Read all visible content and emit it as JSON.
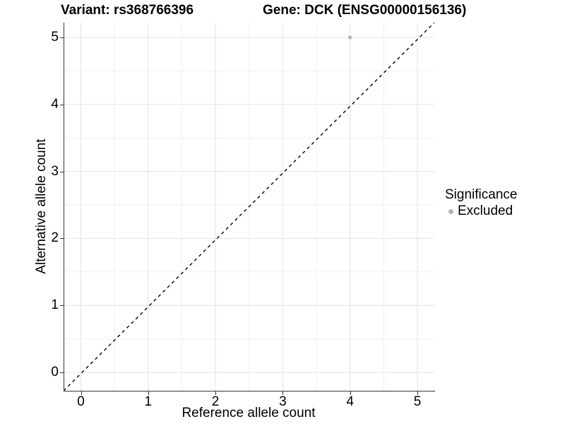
{
  "figure": {
    "title_left": "Variant: rs368766396",
    "title_right": "Gene: DCK (ENSG00000156136)"
  },
  "chart_data": {
    "type": "scatter",
    "title": "Variant: rs368766396    Gene: DCK (ENSG00000156136)",
    "variant": "rs368766396",
    "gene": "DCK (ENSG00000156136)",
    "xlabel": "Reference allele count",
    "ylabel": "Alternative allele count",
    "xlim": [
      -0.26,
      5.26
    ],
    "ylim": [
      -0.26,
      5.26
    ],
    "x_ticks": [
      0,
      1,
      2,
      3,
      4,
      5
    ],
    "y_ticks": [
      0,
      1,
      2,
      3,
      4,
      5
    ],
    "minor_ticks": [
      -0.5,
      0.5,
      1.5,
      2.5,
      3.5,
      4.5,
      5.5
    ],
    "grid": "major+minor",
    "points": [
      {
        "x": 4,
        "y": 5,
        "significance": "Excluded"
      }
    ],
    "identity_line": {
      "slope": 1,
      "intercept": 0,
      "style": "dashed",
      "color": "#000000"
    },
    "legend": {
      "title": "Significance",
      "position": "right",
      "entries": [
        {
          "label": "Excluded",
          "color": "#b4b4b4",
          "marker": "circle"
        }
      ]
    },
    "colors": {
      "point": "#b4b4b4",
      "grid_major": "#e3e3e3",
      "grid_minor": "#f1f1f1",
      "axis": "#333333",
      "background": "#ffffff"
    }
  }
}
